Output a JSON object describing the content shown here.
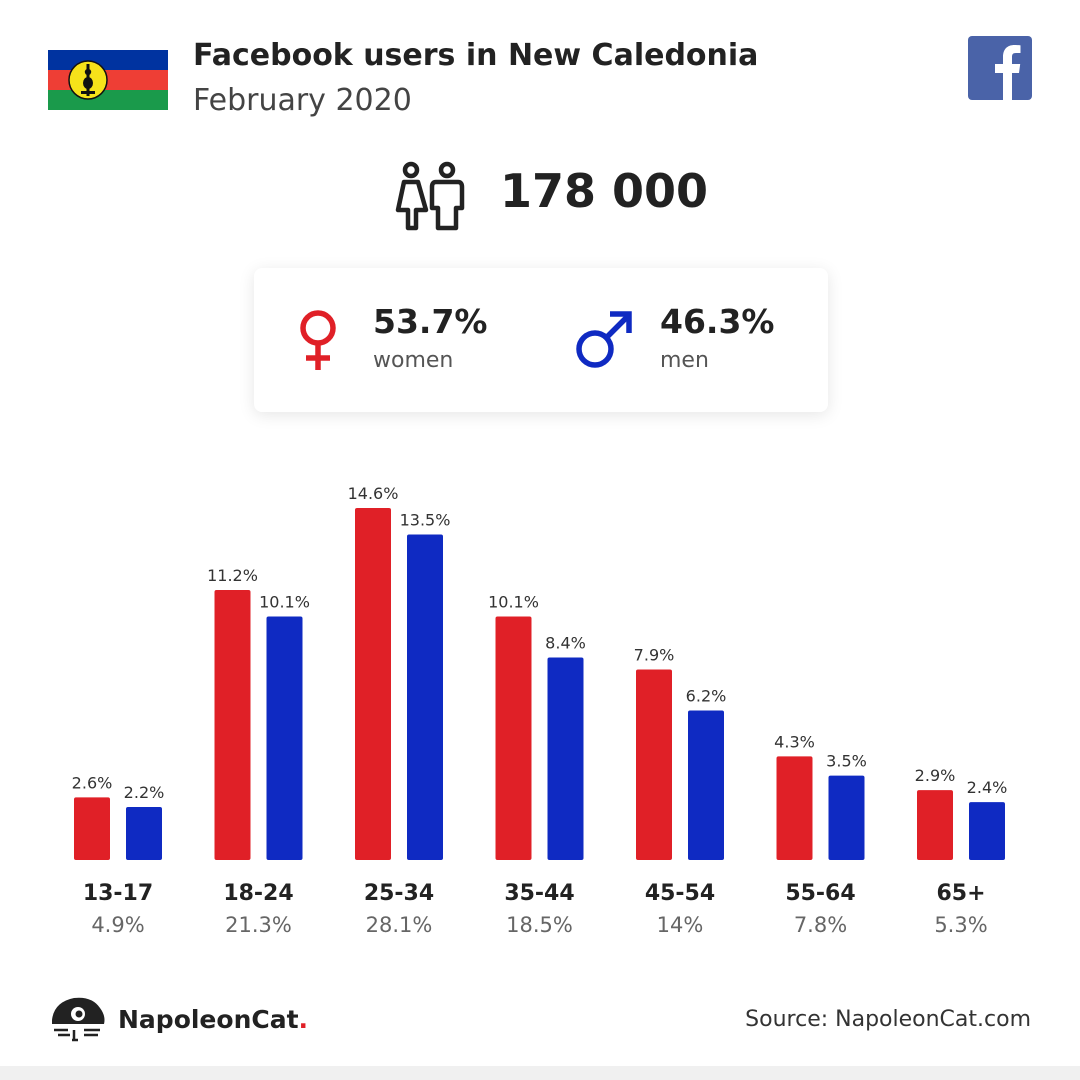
{
  "header": {
    "title": "Facebook users in New Caledonia",
    "subtitle": "February 2020",
    "flag_icon": "new-caledonia-flag",
    "social_icon": "facebook-icon"
  },
  "summary": {
    "users_icon": "users-couple-icon",
    "total_users": "178 000"
  },
  "gender": {
    "women": {
      "pct": "53.7%",
      "label": "women",
      "icon": "female-symbol-icon",
      "color": "#e02027"
    },
    "men": {
      "pct": "46.3%",
      "label": "men",
      "icon": "male-symbol-icon",
      "color": "#0f2ac2"
    }
  },
  "colors": {
    "women": "#e02027",
    "men": "#0f2ac2",
    "facebook": "#4a63a8"
  },
  "chart_data": {
    "type": "bar",
    "title": "",
    "xlabel": "",
    "ylabel": "",
    "categories": [
      "13-17",
      "18-24",
      "25-34",
      "35-44",
      "45-54",
      "55-64",
      "65+"
    ],
    "category_totals": [
      "4.9%",
      "21.3%",
      "28.1%",
      "18.5%",
      "14%",
      "7.8%",
      "5.3%"
    ],
    "series": [
      {
        "values": [
          2.6,
          11.2,
          14.6,
          10.1,
          7.9,
          4.3,
          2.9
        ],
        "labels": [
          "2.6%",
          "11.2%",
          "14.6%",
          "10.1%",
          "7.9%",
          "4.3%",
          "2.9%"
        ],
        "color": "#e02027"
      },
      {
        "values": [
          2.2,
          10.1,
          13.5,
          8.4,
          6.2,
          3.5,
          2.4
        ],
        "labels": [
          "2.2%",
          "10.1%",
          "13.5%",
          "8.4%",
          "6.2%",
          "3.5%",
          "2.4%"
        ],
        "color": "#0f2ac2"
      }
    ],
    "ylim": [
      0,
      14.6
    ],
    "grid": false,
    "legend": "none"
  },
  "footer": {
    "brand_name": "NapoleonCat",
    "brand_dot": ".",
    "brand_icon": "napoleoncat-logo-icon",
    "source": "Source: NapoleonCat.com"
  }
}
